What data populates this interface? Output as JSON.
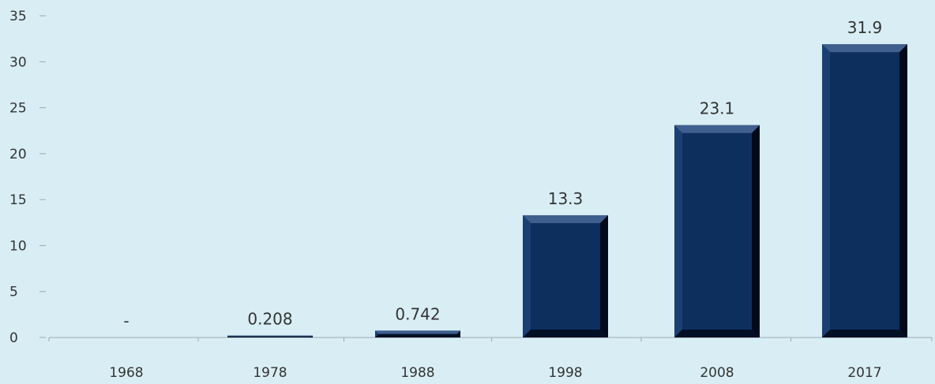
{
  "chart_data": {
    "type": "bar",
    "title": "",
    "xlabel": "",
    "ylabel": "",
    "categories": [
      "1968",
      "1978",
      "1988",
      "1998",
      "2008",
      "2017"
    ],
    "values": [
      0,
      0.208,
      0.742,
      13.3,
      23.1,
      31.9
    ],
    "data_labels": [
      "-",
      "0.208",
      "0.742",
      "13.3",
      "23.1",
      "31.9"
    ],
    "ylim": [
      0,
      35
    ],
    "yticks": [
      "0",
      "5",
      "10",
      "15",
      "20",
      "25",
      "30",
      "35"
    ],
    "grid": false,
    "legend": "none",
    "colors": {
      "background": "#d8eef4",
      "bar": "#0d2f5e",
      "bar_highlight": "#3f5f8f",
      "bar_shadow": "#000a1a",
      "axis": "#9aaab4",
      "text": "#333333"
    }
  }
}
